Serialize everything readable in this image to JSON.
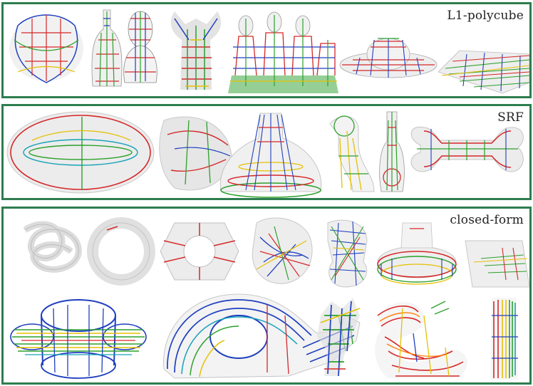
{
  "panels": [
    {
      "label": "L1-polycube"
    },
    {
      "label": "SRF"
    },
    {
      "label": "closed-form"
    }
  ],
  "colors": {
    "frame": "#2e7d4f",
    "shell": "#d9d9d9",
    "lines": [
      "#d62728",
      "#1f3fbf",
      "#2ca02c",
      "#e6c000",
      "#17a2b8",
      "#ff7f0e"
    ]
  }
}
